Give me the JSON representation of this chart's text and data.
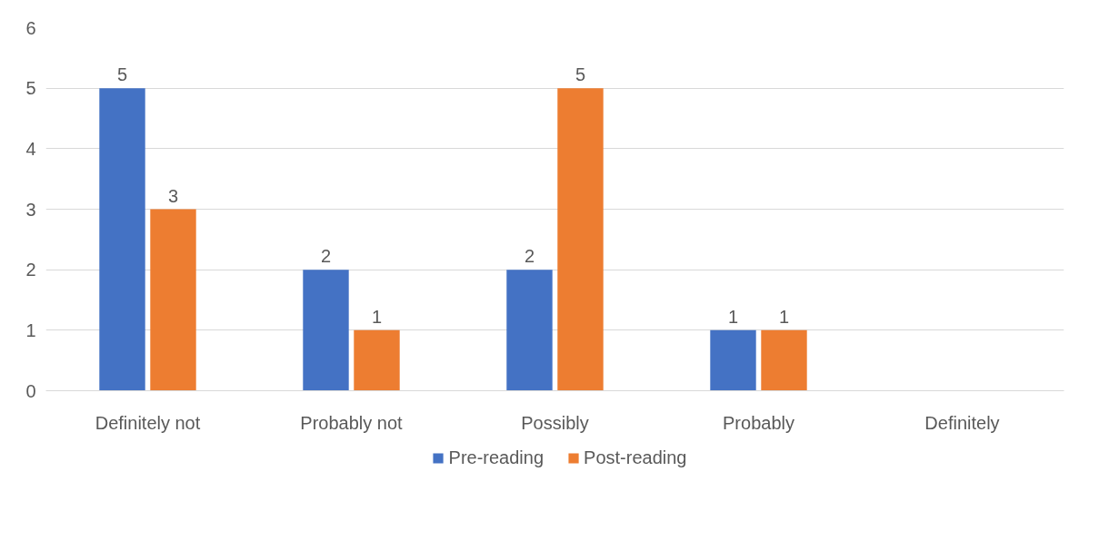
{
  "chart_data": {
    "type": "bar",
    "categories": [
      "Definitely not",
      "Probably not",
      "Possibly",
      "Probably",
      "Definitely"
    ],
    "series": [
      {
        "name": "Pre-reading",
        "color": "#4472c4",
        "values": [
          5,
          2,
          2,
          1,
          null
        ]
      },
      {
        "name": "Post-reading",
        "color": "#ed7d31",
        "values": [
          3,
          1,
          5,
          1,
          null
        ]
      }
    ],
    "ylim": [
      0,
      6
    ],
    "yticks": [
      0,
      1,
      2,
      3,
      4,
      5,
      6
    ],
    "grid": "y",
    "legend": "bottom",
    "data_labels": true
  }
}
